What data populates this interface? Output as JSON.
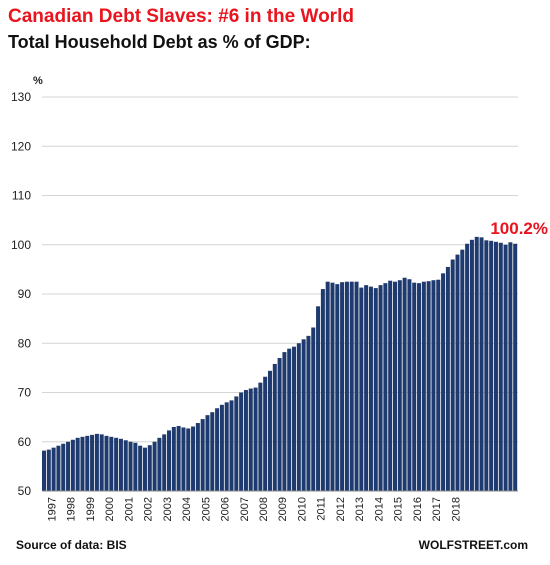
{
  "chart_data": {
    "type": "bar",
    "title": "Canadian Debt Slaves: #6 in the World",
    "subtitle": "Total Household Debt as % of GDP:",
    "ylabel": "%",
    "ylim": [
      50,
      130
    ],
    "yticks": [
      50,
      60,
      70,
      80,
      90,
      100,
      110,
      120,
      130
    ],
    "grid": true,
    "x_tick_labels": [
      "1997",
      "1998",
      "1999",
      "2000",
      "2001",
      "2002",
      "2003",
      "2004",
      "2005",
      "2006",
      "2007",
      "2008",
      "2009",
      "2010",
      "2011",
      "2012",
      "2013",
      "2014",
      "2015",
      "2016",
      "2017",
      "2018"
    ],
    "x_start": "1997-Q1",
    "frequency": "quarterly",
    "values": [
      58.2,
      58.4,
      58.8,
      59.2,
      59.6,
      60.0,
      60.4,
      60.8,
      61.0,
      61.2,
      61.4,
      61.6,
      61.5,
      61.2,
      61.0,
      60.8,
      60.6,
      60.3,
      60.0,
      59.8,
      59.2,
      58.8,
      59.3,
      60.0,
      60.8,
      61.5,
      62.3,
      63.0,
      63.2,
      62.9,
      62.7,
      63.1,
      63.8,
      64.6,
      65.4,
      66.0,
      66.8,
      67.5,
      68.0,
      68.4,
      69.2,
      70.0,
      70.5,
      70.8,
      71.0,
      72.0,
      73.2,
      74.4,
      75.8,
      77.0,
      78.2,
      78.9,
      79.3,
      80.0,
      80.8,
      81.5,
      83.2,
      87.5,
      91.0,
      92.5,
      92.3,
      92.0,
      92.4,
      92.5,
      92.5,
      92.5,
      91.3,
      91.8,
      91.5,
      91.2,
      91.8,
      92.2,
      92.7,
      92.5,
      92.8,
      93.3,
      93.0,
      92.3,
      92.2,
      92.5,
      92.6,
      92.8,
      92.9,
      94.2,
      95.5,
      97.0,
      98.0,
      99.0,
      100.2,
      101.0,
      101.6,
      101.5,
      100.9,
      100.8,
      100.6,
      100.4,
      100.0,
      100.5,
      100.2
    ],
    "bar_color": "#1f3a6e",
    "annotation": {
      "text": "100.2%",
      "color": "#e8141e"
    }
  },
  "footer": {
    "source": "Source of data: BIS",
    "brand": "WOLFSTREET.com"
  }
}
